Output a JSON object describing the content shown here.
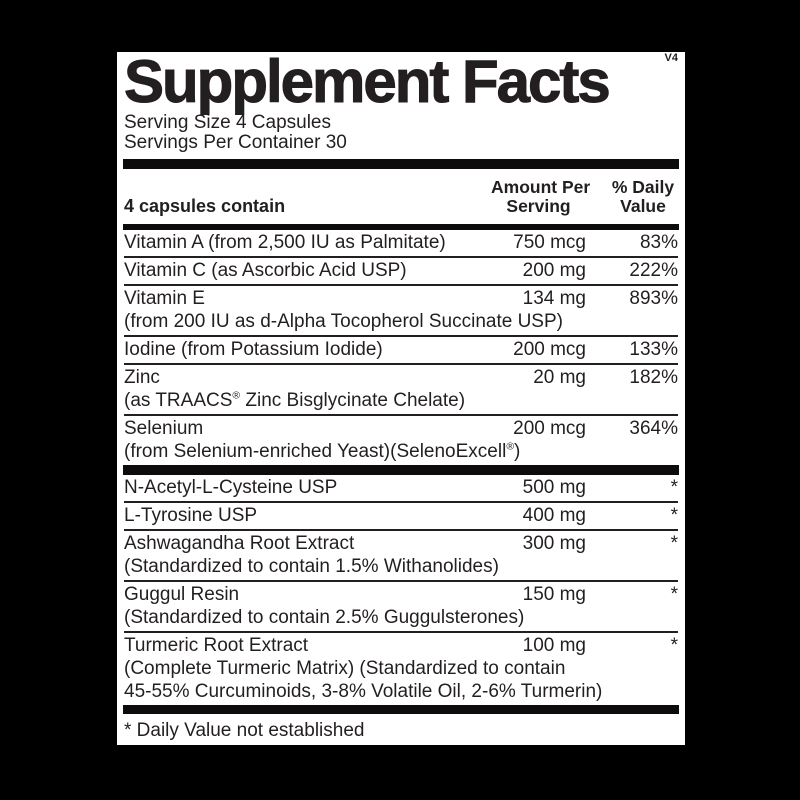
{
  "panel": {
    "title": "Supplement Facts",
    "version_tag": "V4",
    "serving_size": "Serving Size 4 Capsules",
    "servings_per_container": "Servings Per Container 30",
    "column_headers": {
      "ingredient": "4 capsules contain",
      "amount_line1": "Amount Per",
      "amount_line2": "Serving",
      "dv_line1": "% Daily",
      "dv_line2": "Value"
    },
    "sections": [
      {
        "rows": [
          {
            "name": "Vitamin A (from 2,500 IU as Palmitate)",
            "amount": "750 mcg",
            "dv": "83%"
          },
          {
            "name": "Vitamin C (as Ascorbic Acid USP)",
            "amount": "200 mg",
            "dv": "222%"
          },
          {
            "name": "Vitamin E",
            "amount": "134 mg",
            "dv": "893%",
            "sub1": "(from 200 IU as d-Alpha Tocopherol Succinate USP)"
          },
          {
            "name": "Iodine (from Potassium Iodide)",
            "amount": "200 mcg",
            "dv": "133%"
          },
          {
            "name": "Zinc",
            "amount": "20 mg",
            "dv": "182%",
            "sub1": "(as TRAACS® Zinc Bisglycinate Chelate)"
          },
          {
            "name": "Selenium",
            "amount": "200 mcg",
            "dv": "364%",
            "sub1": "(from Selenium-enriched Yeast)(SelenoExcell®)"
          }
        ]
      },
      {
        "rows": [
          {
            "name": "N-Acetyl-L-Cysteine USP",
            "amount": "500 mg",
            "dv": "*"
          },
          {
            "name": "L-Tyrosine USP",
            "amount": "400 mg",
            "dv": "*"
          },
          {
            "name": "Ashwagandha Root Extract",
            "amount": "300 mg",
            "dv": "*",
            "sub1": "(Standardized to contain 1.5% Withanolides)"
          },
          {
            "name": "Guggul Resin",
            "amount": "150 mg",
            "dv": "*",
            "sub1": "(Standardized to contain 2.5% Guggulsterones)"
          },
          {
            "name": "Turmeric Root Extract",
            "amount": "100 mg",
            "dv": "*",
            "sub1": "(Complete Turmeric Matrix) (Standardized to contain",
            "sub2": "45-55% Curcuminoids, 3-8% Volatile Oil, 2-6% Turmerin)"
          }
        ]
      }
    ],
    "footnote": "* Daily Value not established",
    "colors": {
      "background": "#000000",
      "panel_background": "#ffffff",
      "text": "#231f20"
    }
  }
}
